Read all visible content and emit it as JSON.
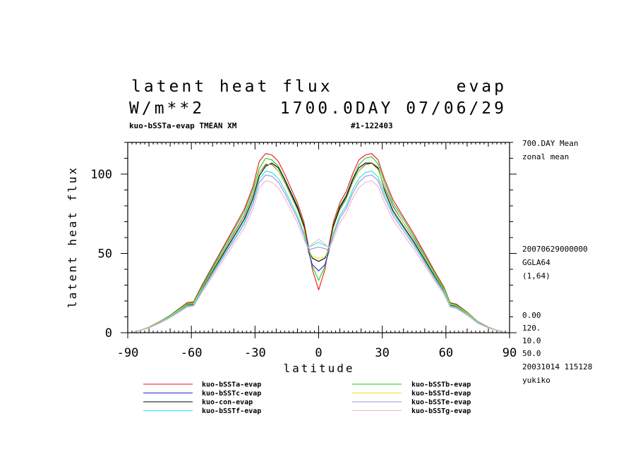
{
  "header": {
    "title": "latent heat flux",
    "var_name": "evap",
    "units": "W/m**2",
    "time_label": "1700.0DAY 07/06/29",
    "run_label": "kuo-bSSTa-evap TMEAN XM",
    "id_label": "#1-122403"
  },
  "side_info": {
    "mean_line1": "700.DAY Mean",
    "mean_line2": "zonal mean",
    "date": "20070629000000",
    "grid": "GGLA64",
    "index": "(1,64)",
    "num1": "0.00",
    "num2": "120.",
    "num3": "10.0",
    "num4": "50.0",
    "stamp": "20031014 115128",
    "user": "yukiko"
  },
  "chart_data": {
    "type": "line",
    "xlabel": "latitude",
    "ylabel": "latent heat flux",
    "xlim": [
      -90,
      90
    ],
    "ylim": [
      0,
      120
    ],
    "xticks": [
      -90,
      -60,
      -30,
      0,
      30,
      60,
      90
    ],
    "xtick_labels": [
      "-90",
      "-60",
      "-30",
      "0",
      "30",
      "60",
      "90"
    ],
    "yticks": [
      0,
      50,
      100
    ],
    "ytick_labels": [
      "0",
      "50",
      "100"
    ],
    "x": [
      -87,
      -84,
      -80,
      -75,
      -70,
      -65,
      -62,
      -59,
      -55,
      -50,
      -45,
      -40,
      -35,
      -31,
      -28,
      -25,
      -22,
      -19,
      -16,
      -13,
      -10,
      -7,
      -5,
      -3,
      0,
      3,
      5,
      7,
      10,
      13,
      16,
      19,
      22,
      25,
      28,
      31,
      35,
      40,
      45,
      50,
      55,
      59,
      62,
      65,
      70,
      75,
      80,
      84,
      87
    ],
    "series": [
      {
        "name": "kuo-bSSTa-evap",
        "color": "#e8141e",
        "values": [
          0.5,
          1.5,
          3.5,
          7,
          11,
          16,
          19,
          19.5,
          30,
          42,
          54,
          66,
          78,
          92,
          108,
          113,
          112,
          108,
          100,
          91,
          82,
          70,
          56,
          40,
          27,
          40,
          56,
          70,
          82,
          89,
          100,
          109,
          112,
          113,
          109,
          97,
          84,
          73,
          62,
          50,
          38,
          29,
          19,
          18,
          13,
          7,
          3.5,
          1.5,
          0.5
        ]
      },
      {
        "name": "kuo-bSSTb-evap",
        "color": "#1ec81e",
        "values": [
          0.5,
          1.5,
          3.4,
          6.8,
          10.8,
          15.7,
          18.5,
          19,
          29.4,
          41.2,
          53,
          64.7,
          76.4,
          90,
          103.5,
          110,
          109,
          105,
          97,
          88.5,
          80,
          68,
          54,
          42,
          33,
          42,
          54,
          68,
          80,
          86.6,
          97,
          106,
          110,
          111,
          106.5,
          95,
          82,
          71.4,
          60.6,
          49,
          37.2,
          28.4,
          18.6,
          17.6,
          12.7,
          6.9,
          3.4,
          1.5,
          0.5
        ]
      },
      {
        "name": "kuo-bSSTc-evap",
        "color": "#1e2ad2",
        "values": [
          0.5,
          1.5,
          3.3,
          6.6,
          10.5,
          15.2,
          18,
          18.5,
          28.5,
          39.9,
          51.3,
          62.7,
          74,
          87.2,
          101,
          106,
          106,
          102,
          95,
          86.5,
          78,
          66.5,
          52,
          43,
          39,
          43,
          52,
          66.5,
          78,
          84.5,
          95,
          102,
          106,
          107,
          103,
          92,
          80,
          69,
          59,
          47.5,
          36,
          27.6,
          18,
          17.1,
          12.3,
          6.7,
          3.3,
          1.5,
          0.5
        ]
      },
      {
        "name": "kuo-con-evap",
        "color": "#000000",
        "values": [
          0.5,
          1.5,
          3.2,
          6.4,
          10.2,
          14.8,
          17.5,
          18,
          27.6,
          38.6,
          49.7,
          60.7,
          71.8,
          84.6,
          99,
          105,
          107,
          104,
          96.6,
          88,
          79.2,
          67.6,
          54,
          47,
          45,
          47,
          54,
          67.6,
          79.2,
          85.9,
          96.6,
          104,
          107,
          107,
          104,
          90,
          77,
          67,
          57,
          46,
          35,
          26.8,
          17.5,
          16.6,
          12,
          6.5,
          3.2,
          1.5,
          0.5
        ]
      },
      {
        "name": "kuo-bSSTd-evap",
        "color": "#e6e61e",
        "values": [
          0.5,
          1.5,
          3.3,
          6.6,
          10.4,
          15.1,
          17.9,
          18.4,
          28.2,
          39.5,
          50.8,
          62.1,
          73.4,
          86.5,
          101.2,
          106.6,
          105.6,
          101.8,
          94.3,
          85.8,
          77.3,
          66,
          52.8,
          48,
          47,
          48,
          52.8,
          66,
          77.3,
          83.9,
          94.3,
          101.8,
          105.6,
          106.6,
          102.7,
          91.4,
          79.2,
          68.8,
          58.4,
          47.1,
          35.8,
          27.3,
          17.9,
          17,
          12.3,
          6.6,
          3.3,
          1.5,
          0.5
        ]
      },
      {
        "name": "kuo-bSSTe-evap",
        "color": "#a08cdc",
        "values": [
          0.5,
          1.4,
          3.1,
          6.1,
          9.8,
          14.1,
          16.7,
          17.2,
          26.4,
          37,
          47.5,
          58.1,
          68.6,
          80.9,
          94.7,
          99.5,
          98.6,
          95,
          88,
          80.1,
          72.2,
          61.6,
          52,
          53,
          54,
          53,
          52,
          61.6,
          72.2,
          78.3,
          88,
          95,
          98.6,
          99.5,
          95.9,
          85.4,
          73.9,
          64.2,
          54.6,
          44,
          33.4,
          25.5,
          16.7,
          15.8,
          11.4,
          6.2,
          3.1,
          1.4,
          0.5
        ]
      },
      {
        "name": "kuo-bSSTf-evap",
        "color": "#1ee6e6",
        "values": [
          0.5,
          1.4,
          3.1,
          6.3,
          10,
          14.5,
          17.1,
          17.6,
          27,
          37.9,
          48.7,
          59.5,
          70.3,
          82.8,
          97,
          101.9,
          101,
          97.3,
          90.2,
          82,
          73.9,
          63.1,
          54,
          55,
          57,
          55,
          54,
          63.1,
          73.9,
          80.2,
          90.2,
          97.3,
          101,
          101.9,
          98.2,
          87.5,
          75.7,
          65.8,
          55.9,
          45.1,
          34.2,
          26.1,
          17.1,
          16.2,
          11.7,
          6.3,
          3.1,
          1.4,
          0.5
        ]
      },
      {
        "name": "kuo-bSSTg-evap",
        "color": "#f0b4c8",
        "values": [
          0.4,
          1.4,
          3,
          5.9,
          9.4,
          13.6,
          16.1,
          16.6,
          25.4,
          35.6,
          45.7,
          55.9,
          66,
          77.8,
          91.1,
          95.8,
          94.9,
          91.4,
          84.7,
          77.1,
          69.4,
          59.2,
          53,
          56,
          59,
          56,
          53,
          59.2,
          69.4,
          75.3,
          84.7,
          91.4,
          94.9,
          95.8,
          92.3,
          82.2,
          71.1,
          61.8,
          52.5,
          42.3,
          32.2,
          24.5,
          16.1,
          15.2,
          11,
          5.9,
          3,
          1.4,
          0.4
        ]
      }
    ],
    "legend": {
      "placement": "bottom",
      "left_column": [
        "kuo-bSSTa-evap",
        "kuo-bSSTc-evap",
        "kuo-con-evap",
        "kuo-bSSTf-evap"
      ],
      "right_column": [
        "kuo-bSSTb-evap",
        "kuo-bSSTd-evap",
        "kuo-bSSTe-evap",
        "kuo-bSSTg-evap"
      ]
    }
  }
}
